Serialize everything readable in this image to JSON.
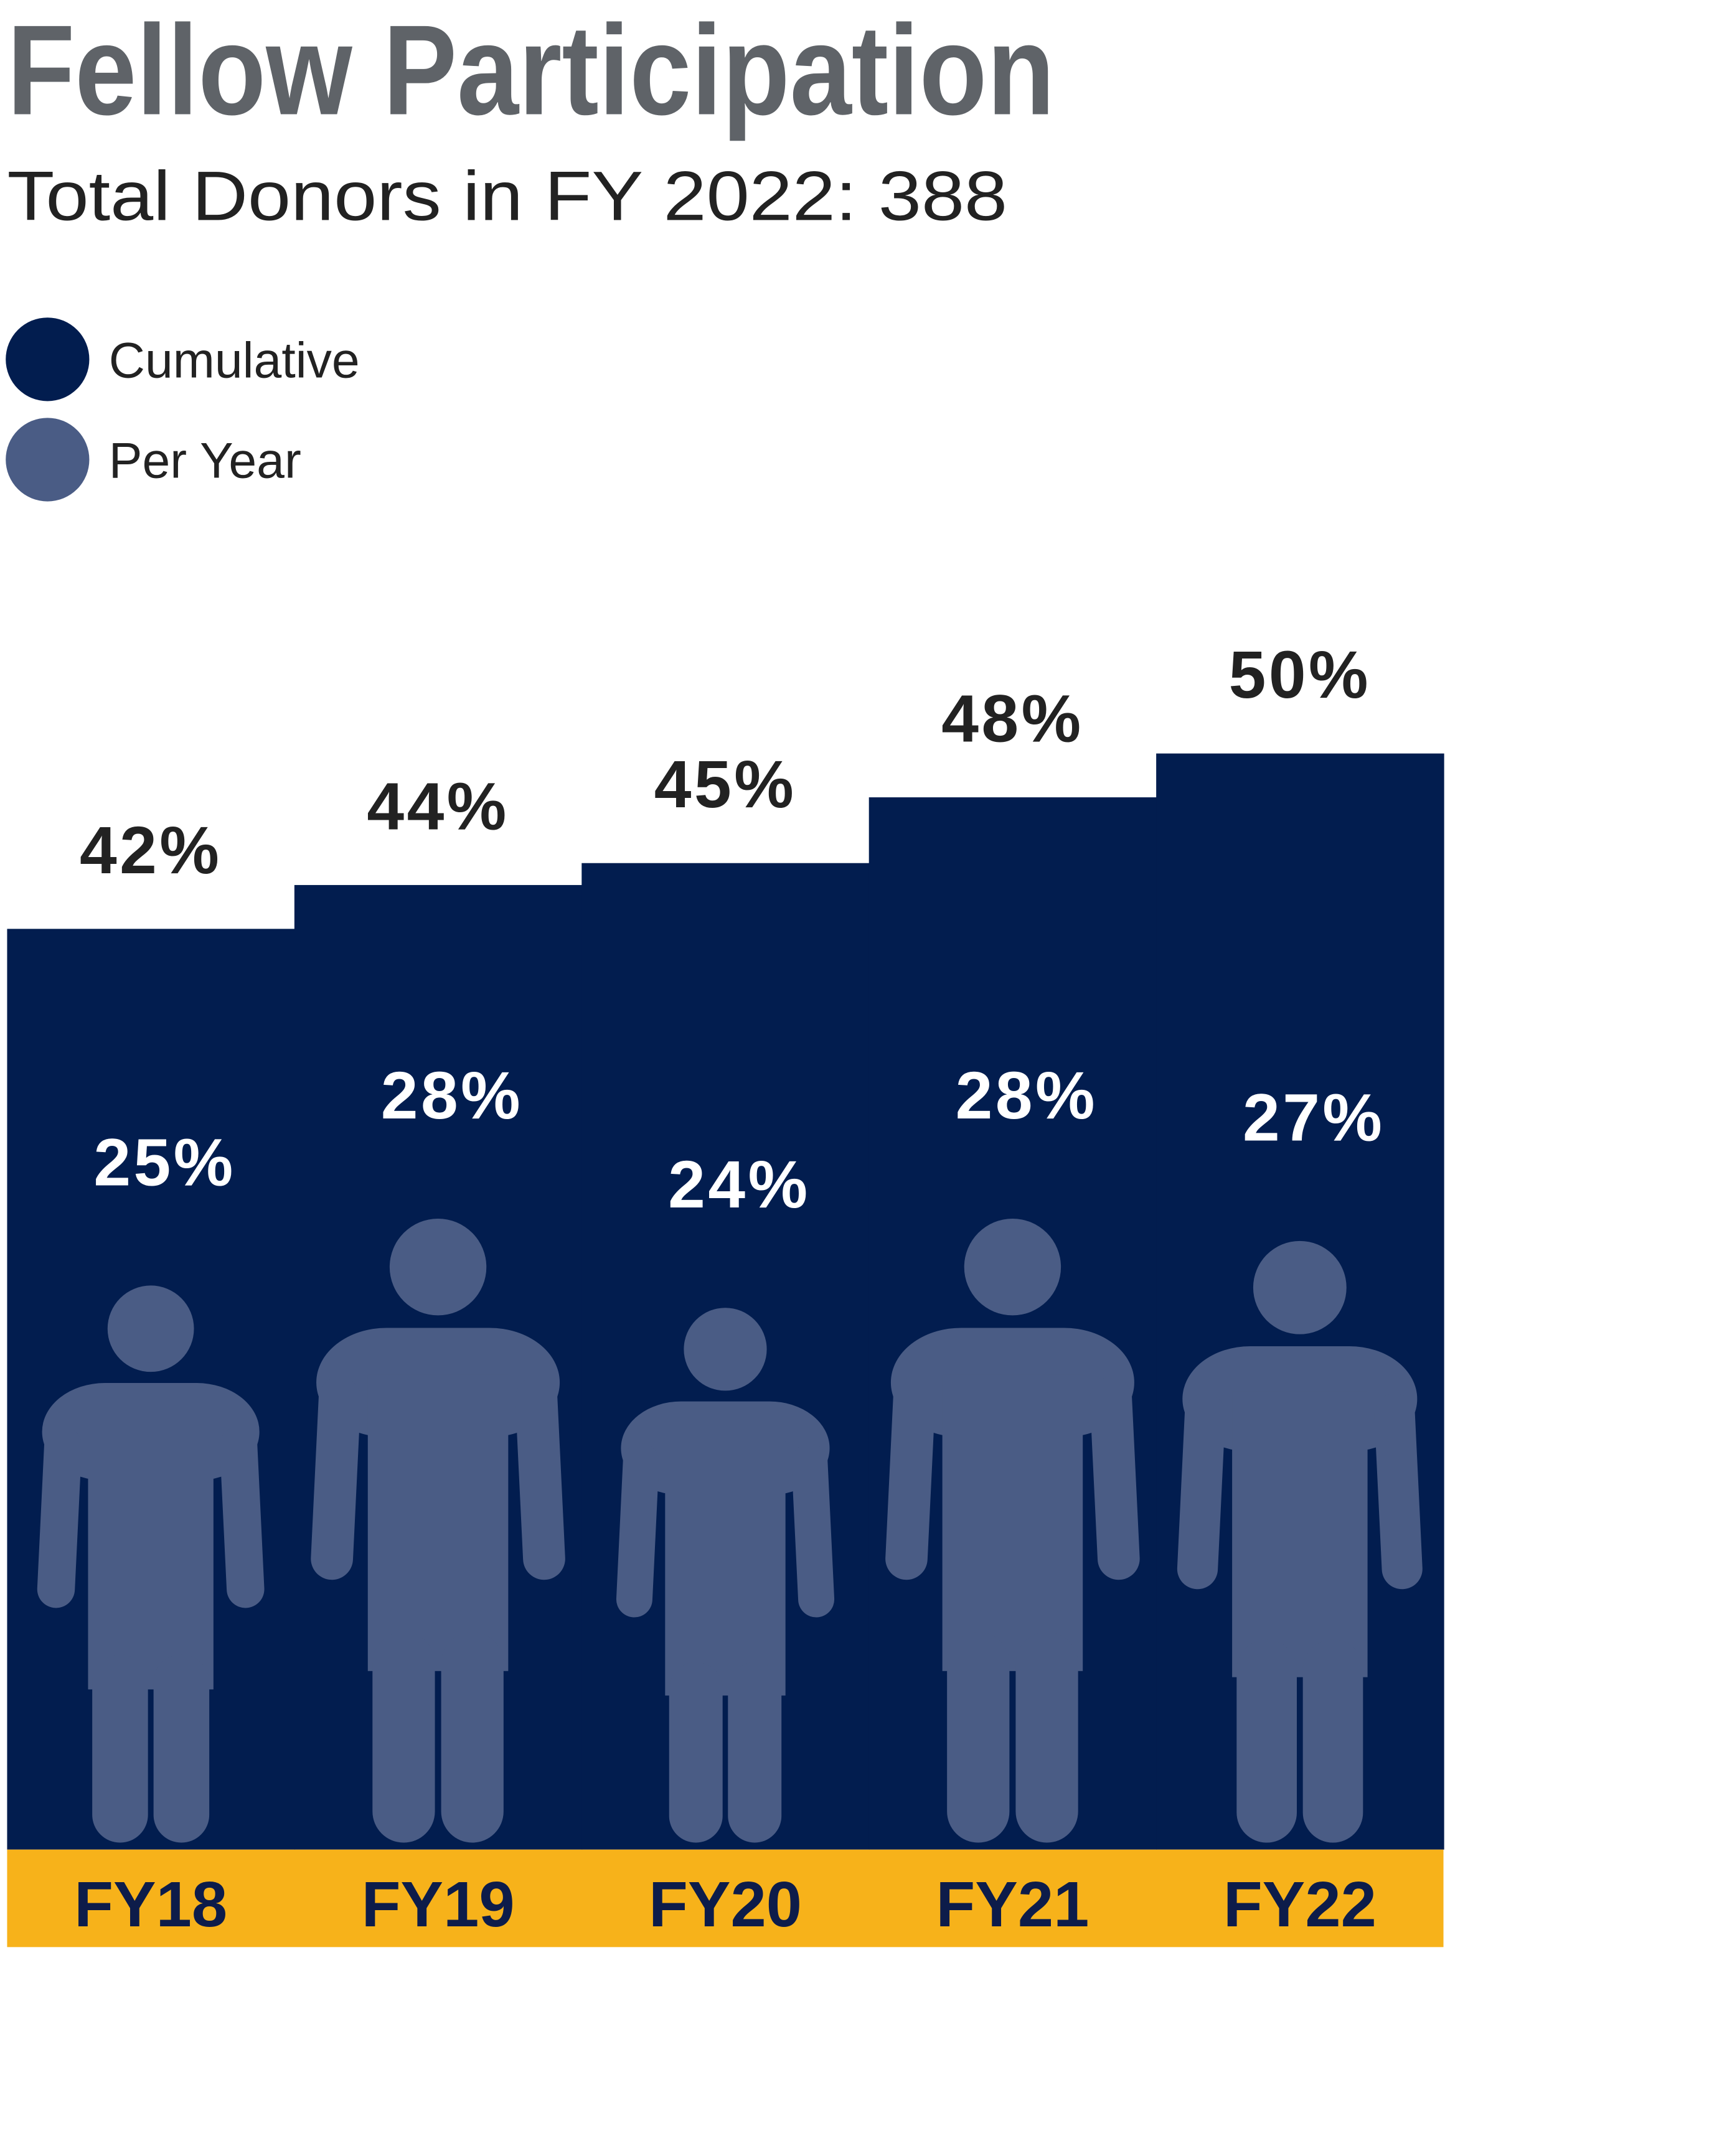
{
  "chart_data": {
    "type": "bar",
    "title": "Fellow Participation",
    "subtitle": "Total Donors in FY 2022: 388",
    "categories": [
      "FY18",
      "FY19",
      "FY20",
      "FY21",
      "FY22"
    ],
    "category_band_color": "#f7b21a",
    "series": [
      {
        "name": "Cumulative",
        "color": "#021d4f",
        "values": [
          42,
          44,
          45,
          48,
          50
        ],
        "value_labels": [
          "42%",
          "44%",
          "45%",
          "48%",
          "50%"
        ]
      },
      {
        "name": "Per Year",
        "color": "#4a5c85",
        "values": [
          25,
          28,
          24,
          28,
          27
        ],
        "value_labels": [
          "25%",
          "28%",
          "24%",
          "28%",
          "27%"
        ]
      }
    ]
  }
}
